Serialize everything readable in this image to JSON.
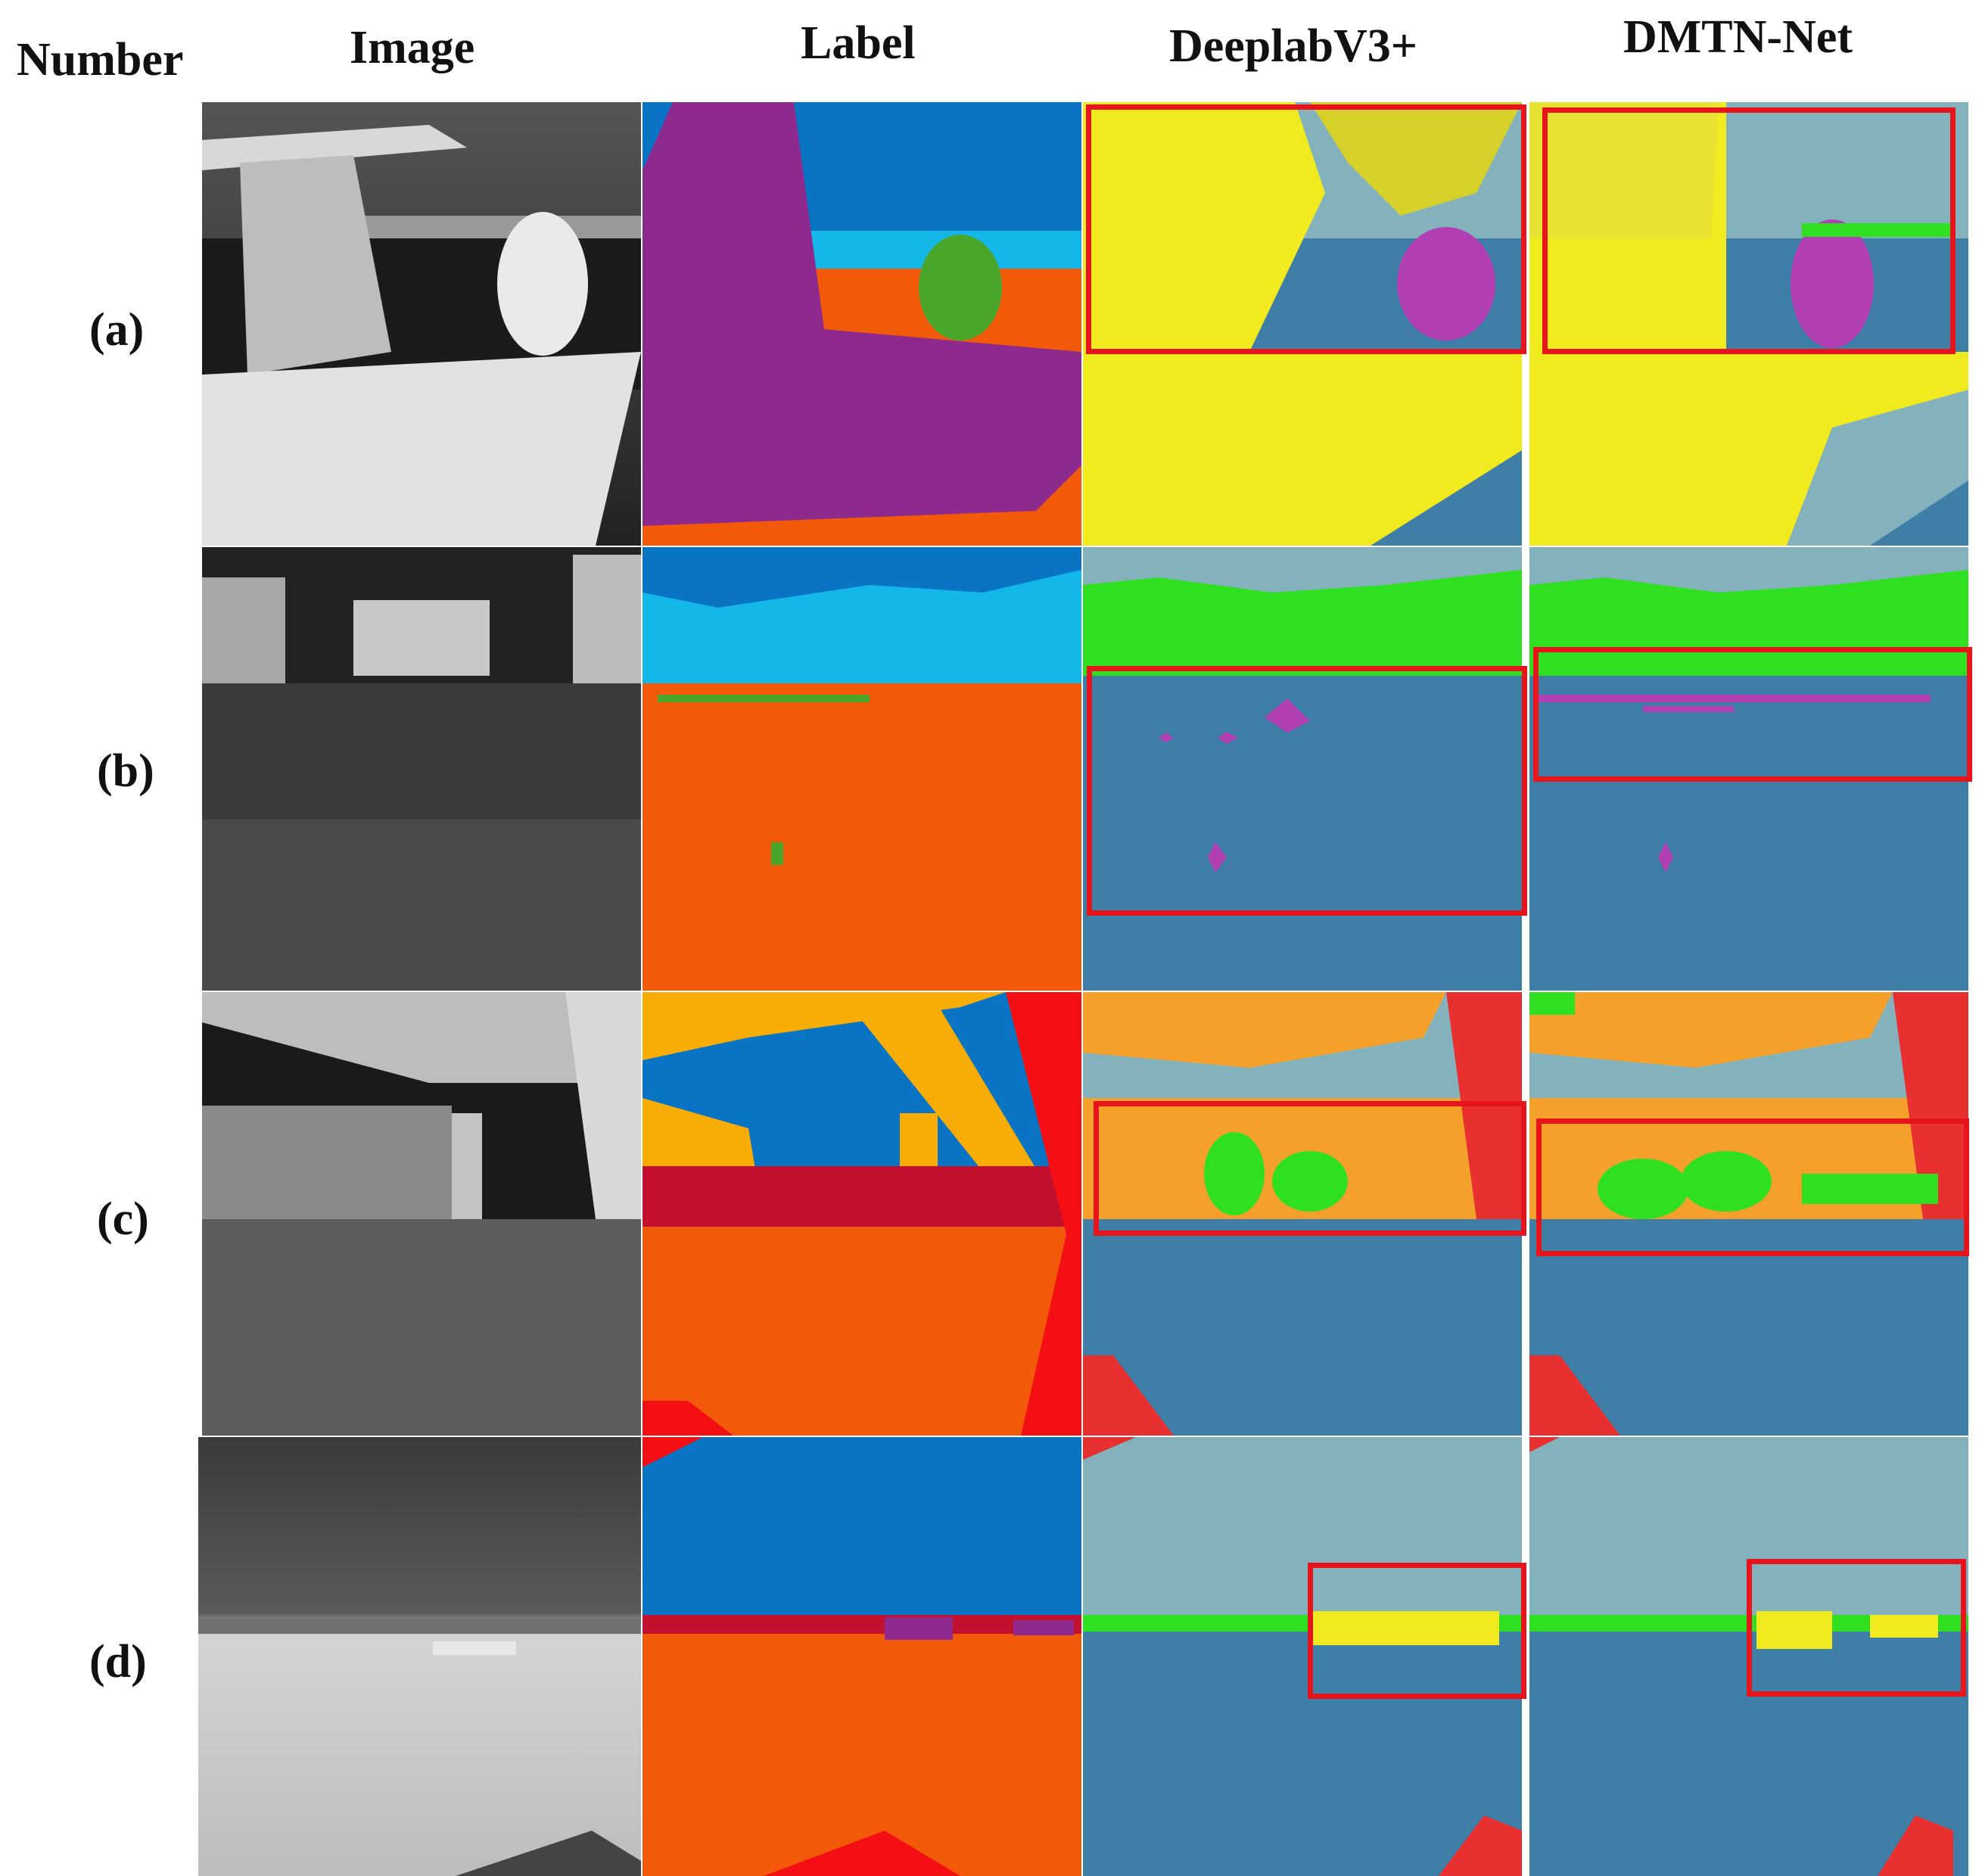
{
  "headers": {
    "number": "Number",
    "image": "Image",
    "label": "Label",
    "deeplab": "DeeplabV3+",
    "dmtn": "DMTN-Net"
  },
  "rows": [
    {
      "id": "(a)"
    },
    {
      "id": "(b)"
    },
    {
      "id": "(c)"
    },
    {
      "id": "(d)"
    }
  ],
  "colors": {
    "highlight_box": "#e8141c",
    "label_sky": "#0a74c4",
    "label_water": "#f25a0a",
    "label_ship": "#8e2a8e",
    "label_person": "#4aa62a",
    "label_building": "#14b8e8",
    "label_bridge": "#f8ac06",
    "label_obstacle": "#c2102e",
    "label_self_boat": "#f40f14",
    "pred_sky": "#84b2bc",
    "pred_water": "#3f7ea6",
    "pred_ship": "#f0ea1e",
    "pred_person": "#b240b4",
    "pred_tree": "#2ee020",
    "pred_bridge": "#f4a02a",
    "pred_self_boat": "#e83030"
  }
}
